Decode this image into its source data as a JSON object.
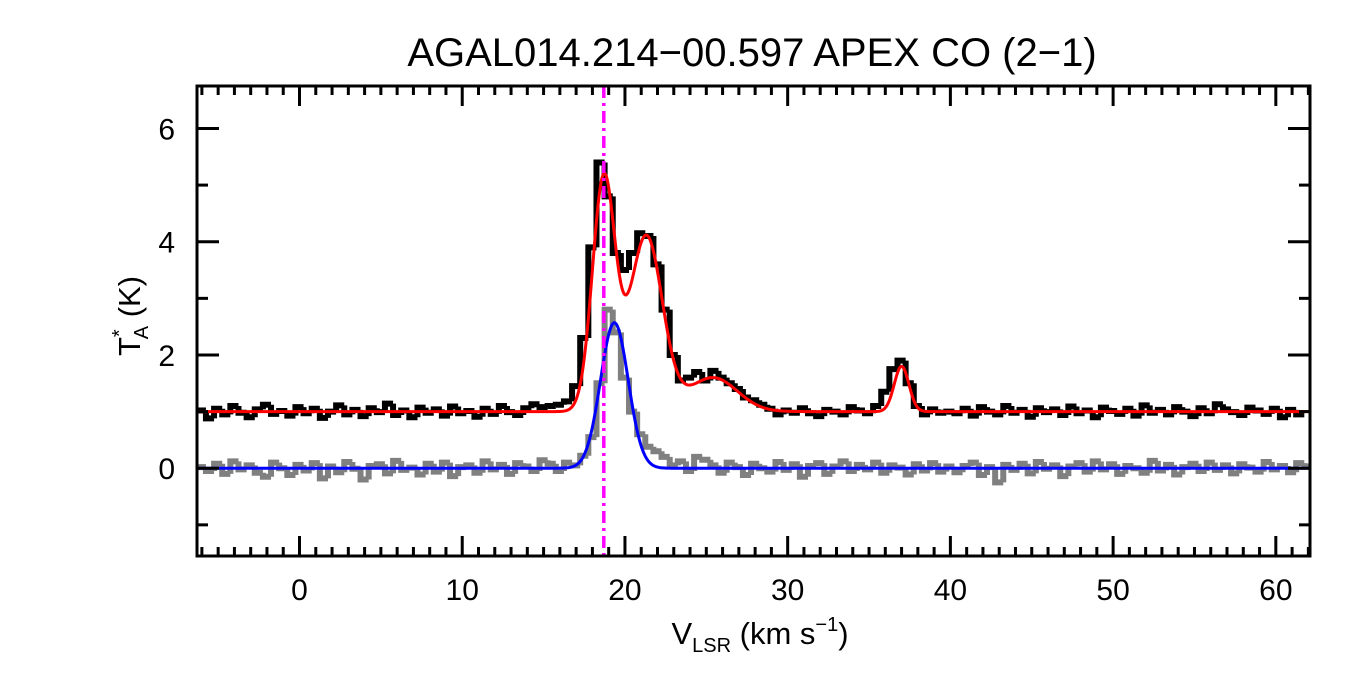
{
  "chart_data": {
    "type": "line",
    "title": "AGAL014.214−00.597  APEX CO (2−1)",
    "xlabel": {
      "main": "V",
      "sub": "LSR",
      "rest": " (km s",
      "sup": "−1",
      "end": ")"
    },
    "ylabel": {
      "main": "T",
      "sup": "*",
      "sub": "A",
      "rest": " (K)"
    },
    "xlim": [
      -6.3,
      62.1
    ],
    "ylim": [
      -1.55,
      6.75
    ],
    "xticks": [
      0,
      10,
      20,
      30,
      40,
      50,
      60
    ],
    "yticks": [
      0,
      2,
      4,
      6
    ],
    "grid": false,
    "x_start": -6,
    "x_step": 0.5,
    "series": [
      {
        "style": "histogram",
        "color": "#000000",
        "values": [
          1.02,
          0.88,
          1.05,
          0.95,
          1.1,
          0.98,
          0.9,
          1.04,
          1.12,
          0.96,
          1.01,
          0.93,
          1.08,
          0.97,
          1.05,
          0.89,
          1.0,
          1.11,
          0.95,
          1.03,
          0.92,
          1.06,
          0.99,
          1.14,
          0.94,
          1.02,
          0.9,
          1.07,
          0.98,
          1.04,
          0.93,
          1.09,
          0.97,
          1.01,
          0.91,
          1.05,
          0.96,
          1.1,
          0.99,
          0.94,
          1.06,
          1.13,
          1.08,
          1.1,
          1.12,
          1.18,
          1.45,
          2.3,
          3.9,
          5.4,
          4.8,
          3.8,
          3.5,
          3.8,
          4.15,
          4.1,
          3.6,
          2.8,
          2.0,
          1.55,
          1.6,
          1.7,
          1.55,
          1.72,
          1.6,
          1.5,
          1.4,
          1.25,
          1.2,
          1.12,
          1.05,
          0.95,
          1.02,
          0.98,
          1.06,
          0.97,
          0.92,
          1.03,
          1.0,
          0.95,
          1.08,
          1.02,
          0.97,
          1.1,
          1.35,
          1.75,
          1.9,
          1.5,
          1.1,
          0.95,
          1.04,
          0.98,
          1.0,
          0.97,
          1.05,
          0.93,
          1.08,
          1.0,
          0.95,
          1.1,
          0.98,
          1.03,
          0.91,
          1.06,
          0.99,
          1.04,
          0.94,
          1.09,
          0.97,
          1.02,
          0.9,
          1.07,
          1.01,
          0.96,
          1.05,
          0.93,
          1.11,
          0.98,
          1.03,
          0.95,
          1.08,
          1.0,
          0.92,
          1.06,
          0.97,
          1.13,
          1.04,
          0.99,
          0.94,
          1.07,
          1.02,
          0.96,
          1.05,
          0.9,
          1.03,
          0.95
        ]
      },
      {
        "style": "histogram",
        "color": "#808080",
        "values": [
          0.02,
          -0.05,
          0.08,
          -0.1,
          0.12,
          -0.02,
          0.05,
          -0.08,
          -0.15,
          0.1,
          0.0,
          -0.12,
          0.06,
          -0.04,
          0.09,
          -0.18,
          0.03,
          -0.07,
          0.11,
          -0.01,
          -0.2,
          0.04,
          0.07,
          -0.09,
          0.13,
          -0.03,
          0.01,
          -0.11,
          0.08,
          -0.06,
          0.1,
          -0.14,
          0.02,
          0.05,
          -0.08,
          0.12,
          -0.02,
          0.06,
          -0.1,
          0.09,
          0.03,
          -0.05,
          0.14,
          0.08,
          -0.05,
          0.1,
          0.05,
          0.22,
          0.55,
          1.5,
          2.8,
          2.4,
          1.6,
          1.0,
          0.6,
          0.38,
          0.3,
          0.2,
          0.05,
          0.12,
          -0.05,
          0.2,
          0.15,
          0.05,
          -0.08,
          0.1,
          0.02,
          -0.12,
          0.08,
          0.0,
          -0.06,
          0.11,
          -0.03,
          0.07,
          -0.15,
          0.04,
          0.09,
          -0.1,
          0.03,
          0.12,
          -0.05,
          0.06,
          -0.02,
          0.1,
          -0.08,
          0.05,
          0.01,
          -0.11,
          0.07,
          -0.04,
          0.09,
          -0.06,
          0.03,
          -0.07,
          0.04,
          0.1,
          -0.12,
          0.02,
          -0.25,
          0.06,
          -0.03,
          0.08,
          -0.09,
          0.11,
          -0.01,
          0.05,
          -0.14,
          0.03,
          0.09,
          -0.06,
          0.12,
          -0.02,
          0.07,
          -0.1,
          0.04,
          0.0,
          -0.08,
          0.13,
          -0.04,
          0.06,
          -0.11,
          0.02,
          0.08,
          -0.05,
          0.1,
          -0.03,
          0.05,
          -0.09,
          0.07,
          0.01,
          -0.06,
          0.11,
          -0.02,
          0.04,
          -0.07,
          0.09,
          0.03
        ]
      },
      {
        "style": "gaussian-fit",
        "color": "#ff0000",
        "baseline": 1.0,
        "components": [
          {
            "center": 18.7,
            "amplitude": 4.1,
            "sigma": 0.7
          },
          {
            "center": 21.3,
            "amplitude": 3.1,
            "sigma": 1.0
          },
          {
            "center": 25.4,
            "amplitude": 0.6,
            "sigma": 1.5
          },
          {
            "center": 37.0,
            "amplitude": 0.8,
            "sigma": 0.45
          }
        ]
      },
      {
        "style": "gaussian-fit",
        "color": "#0000ff",
        "baseline": 0.0,
        "components": [
          {
            "center": 19.35,
            "amplitude": 2.57,
            "sigma": 0.85
          }
        ]
      }
    ],
    "vline": {
      "x": 18.7,
      "color": "#ff00ff",
      "style": "dash-dot"
    }
  }
}
